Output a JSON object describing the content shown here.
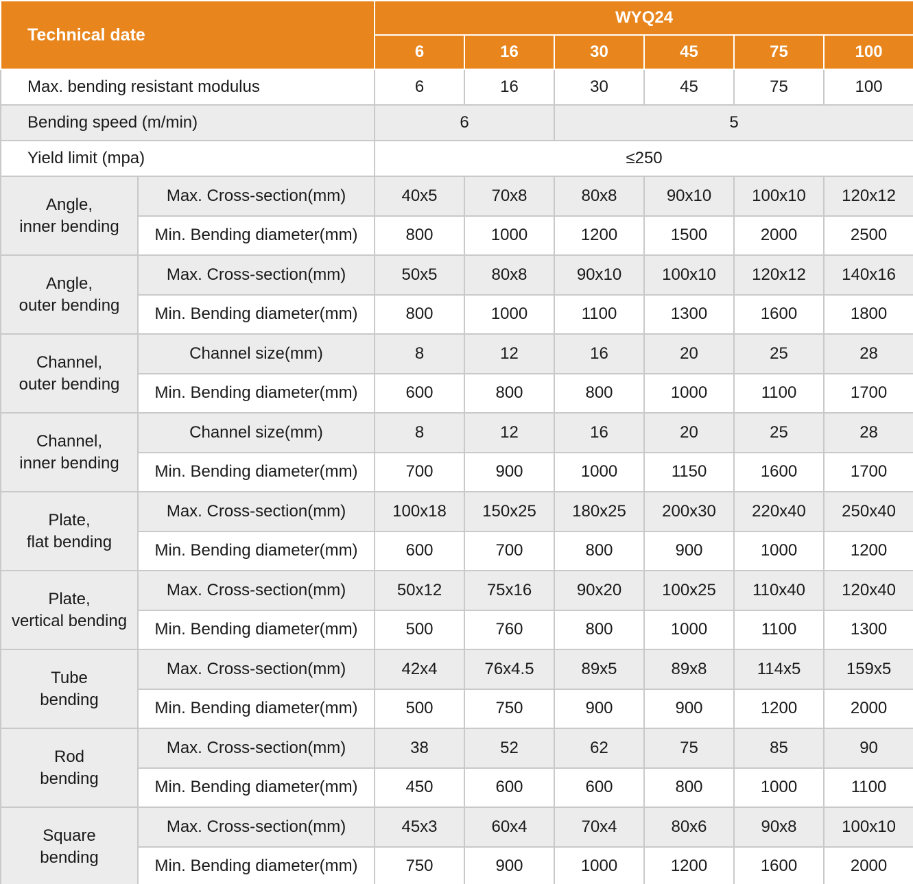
{
  "colors": {
    "header_orange": "#E8851C",
    "header_text": "#FFFFFF",
    "row_shade_gray": "#ECECEC",
    "border_gray": "#C9C9C9",
    "body_text": "#1A1A1A"
  },
  "header": {
    "title": "Technical date",
    "model": "WYQ24",
    "columns": [
      "6",
      "16",
      "30",
      "45",
      "75",
      "100"
    ]
  },
  "info_rows": [
    {
      "label": "Max. bending resistant modulus",
      "shade": false,
      "cells": [
        {
          "text": "6",
          "span": 1
        },
        {
          "text": "16",
          "span": 1
        },
        {
          "text": "30",
          "span": 1
        },
        {
          "text": "45",
          "span": 1
        },
        {
          "text": "75",
          "span": 1
        },
        {
          "text": "100",
          "span": 1
        }
      ]
    },
    {
      "label": "Bending speed (m/min)",
      "shade": true,
      "cells": [
        {
          "text": "6",
          "span": 2
        },
        {
          "text": "5",
          "span": 4
        }
      ]
    },
    {
      "label": "Yield limit (mpa)",
      "shade": false,
      "cells": [
        {
          "text": "≤250",
          "span": 6
        }
      ]
    }
  ],
  "groups": [
    {
      "label": "Angle,\ninner bending",
      "rows": [
        {
          "param": "Max. Cross-section(mm)",
          "values": [
            "40x5",
            "70x8",
            "80x8",
            "90x10",
            "100x10",
            "120x12"
          ]
        },
        {
          "param": "Min. Bending diameter(mm)",
          "values": [
            "800",
            "1000",
            "1200",
            "1500",
            "2000",
            "2500"
          ]
        }
      ]
    },
    {
      "label": "Angle,\nouter bending",
      "rows": [
        {
          "param": "Max. Cross-section(mm)",
          "values": [
            "50x5",
            "80x8",
            "90x10",
            "100x10",
            "120x12",
            "140x16"
          ]
        },
        {
          "param": "Min. Bending diameter(mm)",
          "values": [
            "800",
            "1000",
            "1100",
            "1300",
            "1600",
            "1800"
          ]
        }
      ]
    },
    {
      "label": "Channel,\nouter bending",
      "rows": [
        {
          "param": "Channel size(mm)",
          "values": [
            "8",
            "12",
            "16",
            "20",
            "25",
            "28"
          ]
        },
        {
          "param": "Min. Bending diameter(mm)",
          "values": [
            "600",
            "800",
            "800",
            "1000",
            "1100",
            "1700"
          ]
        }
      ]
    },
    {
      "label": "Channel,\ninner bending",
      "rows": [
        {
          "param": "Channel size(mm)",
          "values": [
            "8",
            "12",
            "16",
            "20",
            "25",
            "28"
          ]
        },
        {
          "param": "Min. Bending diameter(mm)",
          "values": [
            "700",
            "900",
            "1000",
            "1150",
            "1600",
            "1700"
          ]
        }
      ]
    },
    {
      "label": "Plate,\nflat bending",
      "rows": [
        {
          "param": "Max. Cross-section(mm)",
          "values": [
            "100x18",
            "150x25",
            "180x25",
            "200x30",
            "220x40",
            "250x40"
          ]
        },
        {
          "param": "Min. Bending diameter(mm)",
          "values": [
            "600",
            "700",
            "800",
            "900",
            "1000",
            "1200"
          ]
        }
      ]
    },
    {
      "label": "Plate,\nvertical bending",
      "rows": [
        {
          "param": "Max. Cross-section(mm)",
          "values": [
            "50x12",
            "75x16",
            "90x20",
            "100x25",
            "110x40",
            "120x40"
          ]
        },
        {
          "param": "Min. Bending diameter(mm)",
          "values": [
            "500",
            "760",
            "800",
            "1000",
            "1100",
            "1300"
          ]
        }
      ]
    },
    {
      "label": "Tube\nbending",
      "rows": [
        {
          "param": "Max. Cross-section(mm)",
          "values": [
            "42x4",
            "76x4.5",
            "89x5",
            "89x8",
            "114x5",
            "159x5"
          ]
        },
        {
          "param": "Min. Bending diameter(mm)",
          "values": [
            "500",
            "750",
            "900",
            "900",
            "1200",
            "2000"
          ]
        }
      ]
    },
    {
      "label": "Rod\nbending",
      "rows": [
        {
          "param": "Max. Cross-section(mm)",
          "values": [
            "38",
            "52",
            "62",
            "75",
            "85",
            "90"
          ]
        },
        {
          "param": "Min. Bending diameter(mm)",
          "values": [
            "450",
            "600",
            "600",
            "800",
            "1000",
            "1100"
          ]
        }
      ]
    },
    {
      "label": "Square\nbending",
      "rows": [
        {
          "param": "Max. Cross-section(mm)",
          "values": [
            "45x3",
            "60x4",
            "70x4",
            "80x6",
            "90x8",
            "100x10"
          ]
        },
        {
          "param": "Min. Bending diameter(mm)",
          "values": [
            "750",
            "900",
            "1000",
            "1200",
            "1600",
            "2000"
          ]
        }
      ]
    }
  ]
}
